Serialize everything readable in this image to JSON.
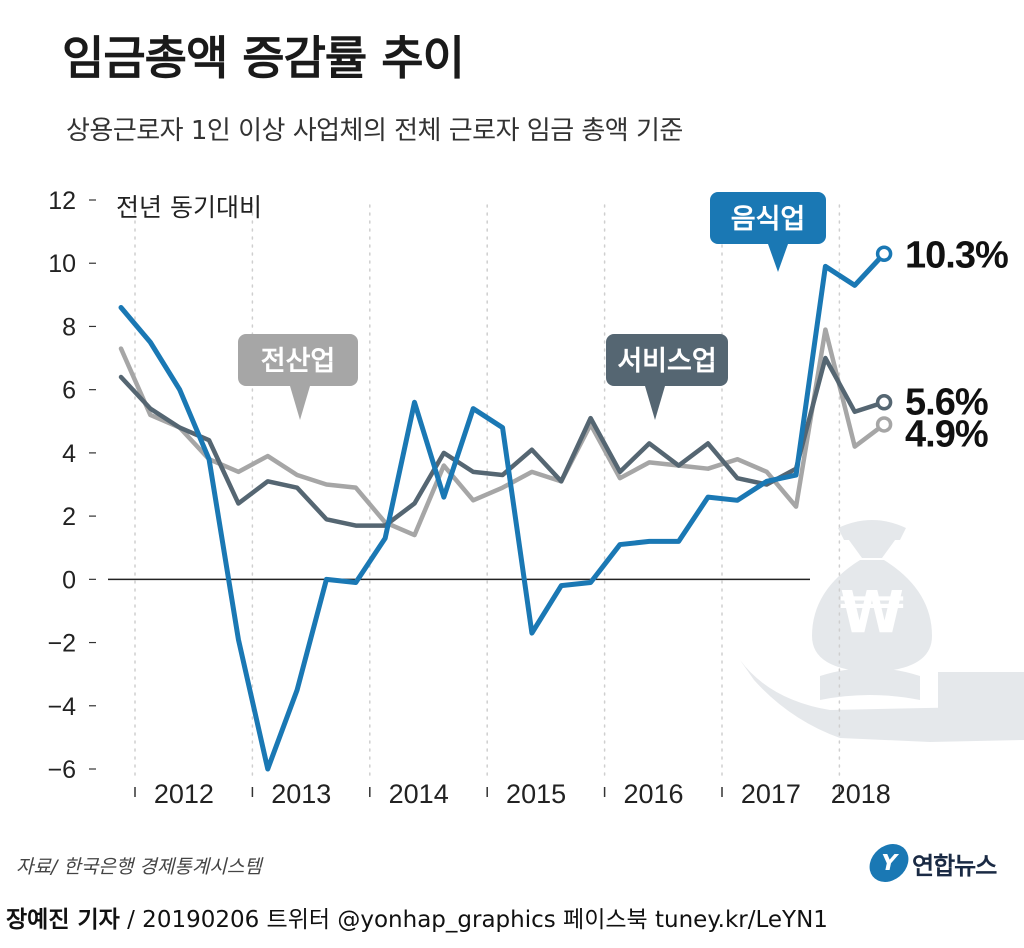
{
  "header": {
    "title": "임금총액 증감률 추이",
    "subtitle": "상용근로자 1인 이상 사업체의 전체 근로자 임금 총액 기준"
  },
  "chart_data": {
    "type": "line",
    "title": "임금총액 증감률 추이",
    "subtitle": "상용근로자 1인 이상 사업체의 전체 근로자 임금 총액 기준",
    "ylabel": "전년 동기대비",
    "xlabel": "",
    "ylim": [
      -6,
      12
    ],
    "yticks": [
      12,
      10,
      8,
      6,
      4,
      2,
      0,
      -2,
      -4,
      -6
    ],
    "year_labels": [
      "2012",
      "2013",
      "2014",
      "2015",
      "2016",
      "2017",
      "2018"
    ],
    "grid": true,
    "x": [
      "2012 Q1",
      "2012 Q2",
      "2012 Q3",
      "2012 Q4",
      "2013 Q1",
      "2013 Q2",
      "2013 Q3",
      "2013 Q4",
      "2014 Q1",
      "2014 Q2",
      "2014 Q3",
      "2014 Q4",
      "2015 Q1",
      "2015 Q2",
      "2015 Q3",
      "2015 Q4",
      "2016 Q1",
      "2016 Q2",
      "2016 Q3",
      "2016 Q4",
      "2017 Q1",
      "2017 Q2",
      "2017 Q3",
      "2017 Q4",
      "2018 Q1",
      "2018 Q2",
      "2018 Q3"
    ],
    "series": [
      {
        "name": "음식업",
        "color": "#1a78b4",
        "end_label": "10.3%",
        "values": [
          8.6,
          7.5,
          6.0,
          3.8,
          -1.9,
          -6.0,
          -3.5,
          0.0,
          -0.1,
          1.3,
          5.6,
          2.6,
          5.4,
          4.8,
          -1.7,
          -0.2,
          -0.1,
          1.1,
          1.2,
          1.2,
          2.6,
          2.5,
          3.1,
          3.3,
          9.9,
          9.3,
          10.3
        ]
      },
      {
        "name": "서비스업",
        "color": "#556672",
        "end_label": "5.6%",
        "values": [
          6.4,
          5.4,
          4.8,
          4.4,
          2.4,
          3.1,
          2.9,
          1.9,
          1.7,
          1.7,
          2.4,
          4.0,
          3.4,
          3.3,
          4.1,
          3.1,
          5.1,
          3.4,
          4.3,
          3.6,
          4.3,
          3.2,
          3.0,
          3.5,
          7.0,
          5.3,
          5.6
        ]
      },
      {
        "name": "전산업",
        "color": "#a6a6a6",
        "end_label": "4.9%",
        "values": [
          7.3,
          5.2,
          4.8,
          3.8,
          3.4,
          3.9,
          3.3,
          3.0,
          2.9,
          1.8,
          1.4,
          3.6,
          2.5,
          2.9,
          3.4,
          3.1,
          4.9,
          3.2,
          3.7,
          3.6,
          3.5,
          3.8,
          3.4,
          2.3,
          7.9,
          4.2,
          4.9
        ]
      }
    ]
  },
  "footer": {
    "source": "자료/ 한국은행 경제통계시스템",
    "logo_text": "연합뉴스",
    "logo_mark": "Y",
    "credit_name": "장예진 기자",
    "credit_rest": " / 20190206 트위터 @yonhap_graphics  페이스북 tuney.kr/LeYN1"
  }
}
